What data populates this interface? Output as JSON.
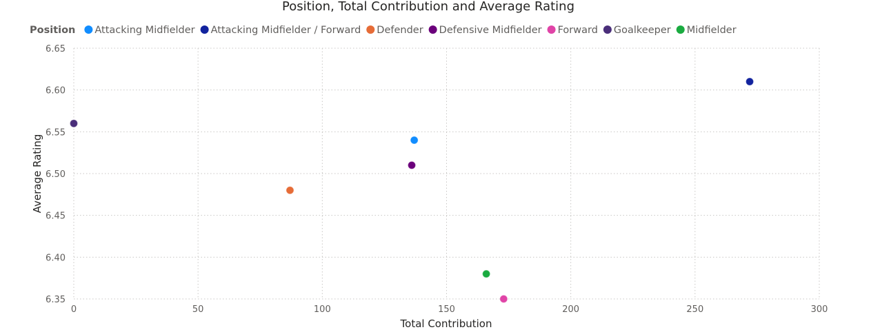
{
  "chart_data": {
    "type": "scatter",
    "title": "Position, Total Contribution and Average Rating",
    "xlabel": "Total Contribution",
    "ylabel": "Average Rating",
    "xlim": [
      0,
      300
    ],
    "ylim": [
      6.35,
      6.65
    ],
    "x_ticks": [
      "0",
      "50",
      "100",
      "150",
      "200",
      "250",
      "300"
    ],
    "y_ticks": [
      "6.35",
      "6.40",
      "6.45",
      "6.50",
      "6.55",
      "6.60",
      "6.65"
    ],
    "grid": true,
    "legend_title": "Position",
    "legend_position": "top-left",
    "series": [
      {
        "name": "Attacking Midfielder",
        "color": "#118DFF",
        "x": 137,
        "y": 6.54
      },
      {
        "name": "Attacking Midfielder / Forward",
        "color": "#12239E",
        "x": 272,
        "y": 6.61
      },
      {
        "name": "Defender",
        "color": "#E66C37",
        "x": 87,
        "y": 6.48
      },
      {
        "name": "Defensive Midfielder",
        "color": "#6B007B",
        "x": 136,
        "y": 6.51
      },
      {
        "name": "Forward",
        "color": "#E044A7",
        "x": 173,
        "y": 6.35
      },
      {
        "name": "Goalkeeper",
        "color": "#4A2E7A",
        "x": 0,
        "y": 6.56
      },
      {
        "name": "Midfielder",
        "color": "#1AAB40",
        "x": 166,
        "y": 6.38
      }
    ]
  }
}
